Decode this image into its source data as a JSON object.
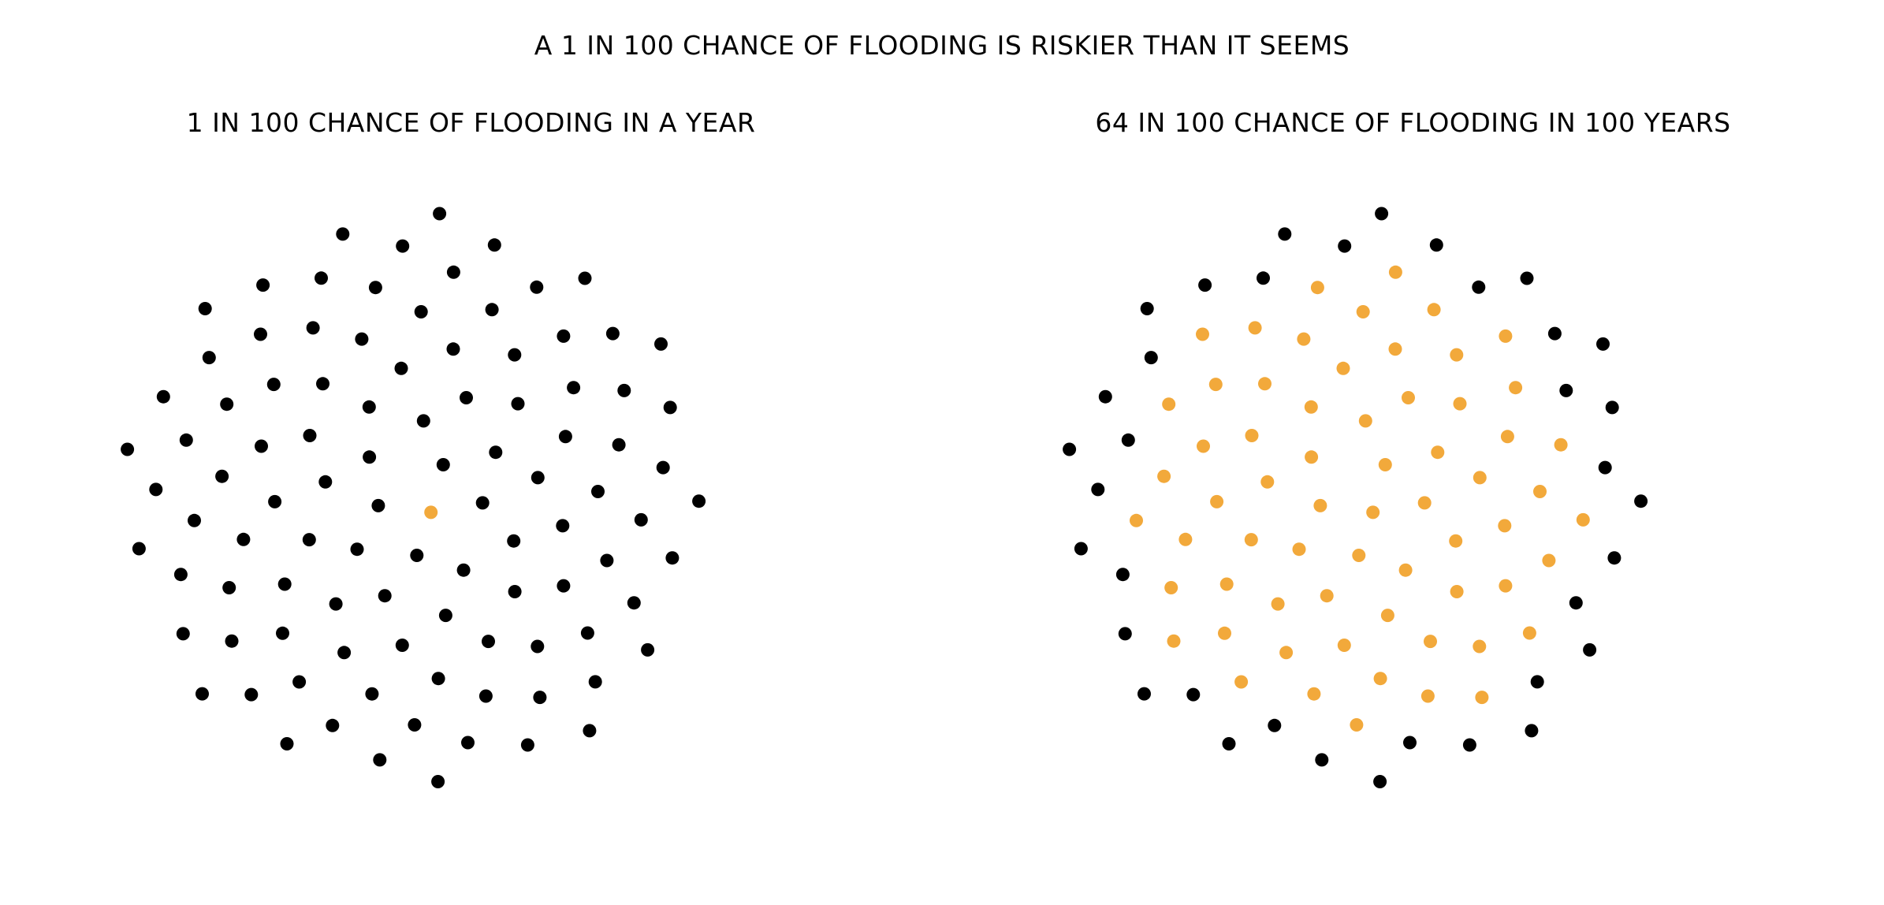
{
  "title": "A 1 IN 100 CHANCE OF FLOODING IS RISKIER THAN IT SEEMS",
  "colors": {
    "flooded": "#F2A93B",
    "not_flooded": "#000000",
    "background": "#FFFFFF"
  },
  "chart_data": [
    {
      "type": "scatter",
      "title": "1 IN 100 CHANCE OF FLOODING IN A YEAR",
      "total_dots": 100,
      "highlighted_dots": 1,
      "highlight_color": "#F2A93B",
      "base_color": "#000000",
      "arrangement": "sunflower spiral, highlighted dots at center"
    },
    {
      "type": "scatter",
      "title": "64 IN 100 CHANCE OF FLOODING IN 100 YEARS",
      "total_dots": 100,
      "highlighted_dots": 64,
      "highlight_color": "#F2A93B",
      "base_color": "#000000",
      "arrangement": "sunflower spiral, highlighted dots at center"
    }
  ]
}
